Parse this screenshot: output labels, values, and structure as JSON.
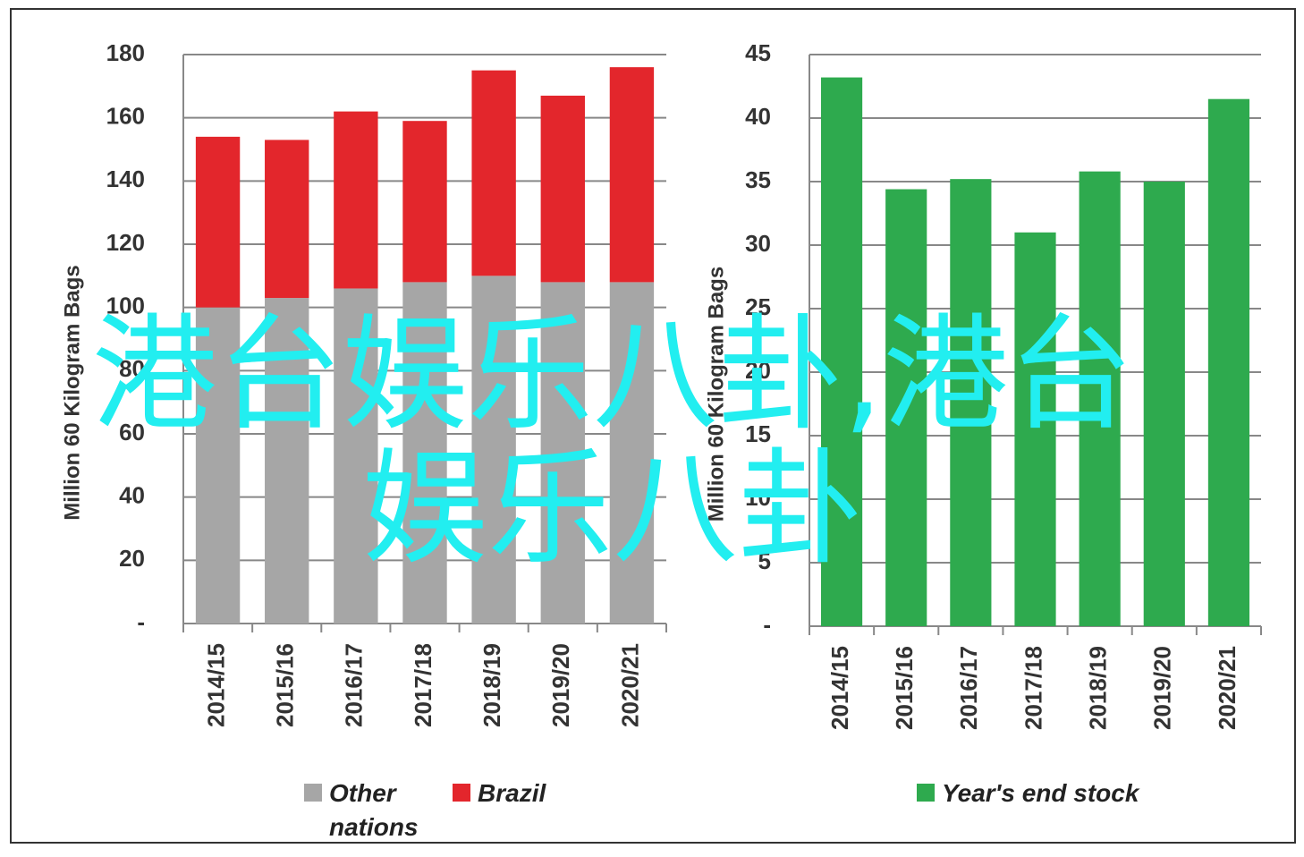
{
  "chart_data": [
    {
      "type": "bar",
      "stacked": true,
      "y_axis_label": "Million 60 Kilogram Bags",
      "categories": [
        "2014/15",
        "2015/16",
        "2016/17",
        "2017/18",
        "2018/19",
        "2019/20",
        "2020/21"
      ],
      "series": [
        {
          "name": "Other nations",
          "color": "#a6a6a6",
          "values": [
            100,
            103,
            106,
            108,
            110,
            108,
            108
          ]
        },
        {
          "name": "Brazil",
          "color": "#e3262c",
          "values": [
            54,
            50,
            56,
            51,
            65,
            59,
            68
          ]
        }
      ],
      "ylim": [
        0,
        180
      ],
      "yticks": [
        {
          "value": 0,
          "label": "-"
        },
        20,
        40,
        60,
        80,
        100,
        120,
        140,
        160,
        180
      ],
      "grid": true
    },
    {
      "type": "bar",
      "y_axis_label": "Million 60 Kilogram Bags",
      "categories": [
        "2014/15",
        "2015/16",
        "2016/17",
        "2017/18",
        "2018/19",
        "2019/20",
        "2020/21"
      ],
      "series": [
        {
          "name": "Year's end stock",
          "color": "#2eaa4e",
          "values": [
            43.2,
            34.4,
            35.2,
            31,
            35.8,
            35,
            41.5
          ]
        }
      ],
      "ylim": [
        0,
        45
      ],
      "yticks": [
        {
          "value": 0,
          "label": "-"
        },
        5,
        10,
        15,
        20,
        25,
        30,
        35,
        40,
        45
      ],
      "grid": true
    }
  ],
  "overlay_text": "港台娱乐八卦,港台娱乐八卦"
}
